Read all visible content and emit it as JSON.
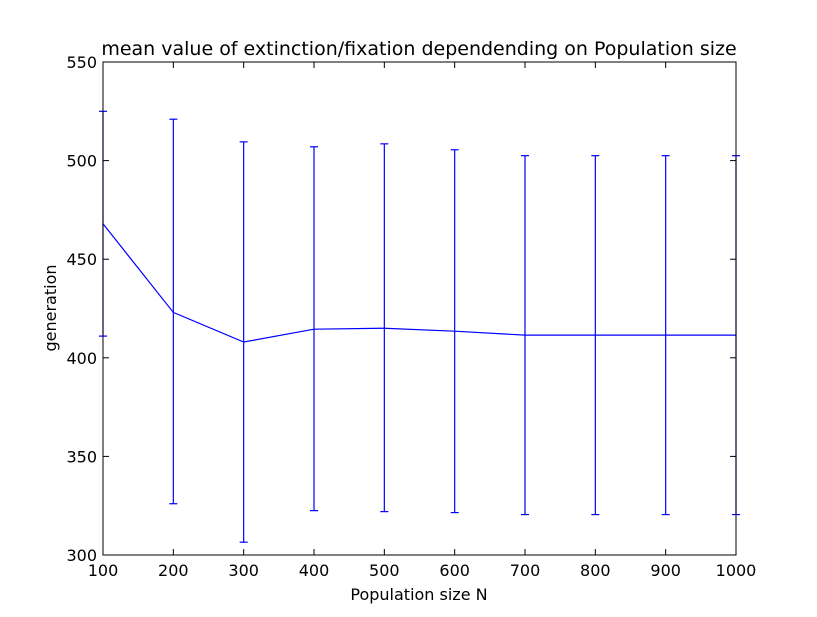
{
  "chart_data": {
    "type": "line",
    "title": "mean value of extinction/fixation dependending on Population size",
    "xlabel": "Population size N",
    "ylabel": "generation",
    "xlim": [
      100,
      1000
    ],
    "ylim": [
      300,
      550
    ],
    "xticks": [
      100,
      200,
      300,
      400,
      500,
      600,
      700,
      800,
      900,
      1000
    ],
    "yticks": [
      300,
      350,
      400,
      450,
      500,
      550
    ],
    "grid": false,
    "line_color": "#0000ff",
    "series": [
      {
        "x": [
          100,
          200,
          300,
          400,
          500,
          600,
          700,
          800,
          900,
          1000
        ],
        "values": [
          468,
          423,
          408,
          414.5,
          415,
          413.5,
          411.5,
          411.5,
          411.5,
          411.5
        ],
        "err_low": [
          411,
          326,
          306.5,
          322.5,
          322,
          321.5,
          320.5,
          320.5,
          320.5,
          320.5
        ],
        "err_high": [
          525,
          521,
          509.5,
          507,
          508.5,
          505.5,
          502.5,
          502.5,
          502.5,
          502.5
        ]
      }
    ]
  }
}
